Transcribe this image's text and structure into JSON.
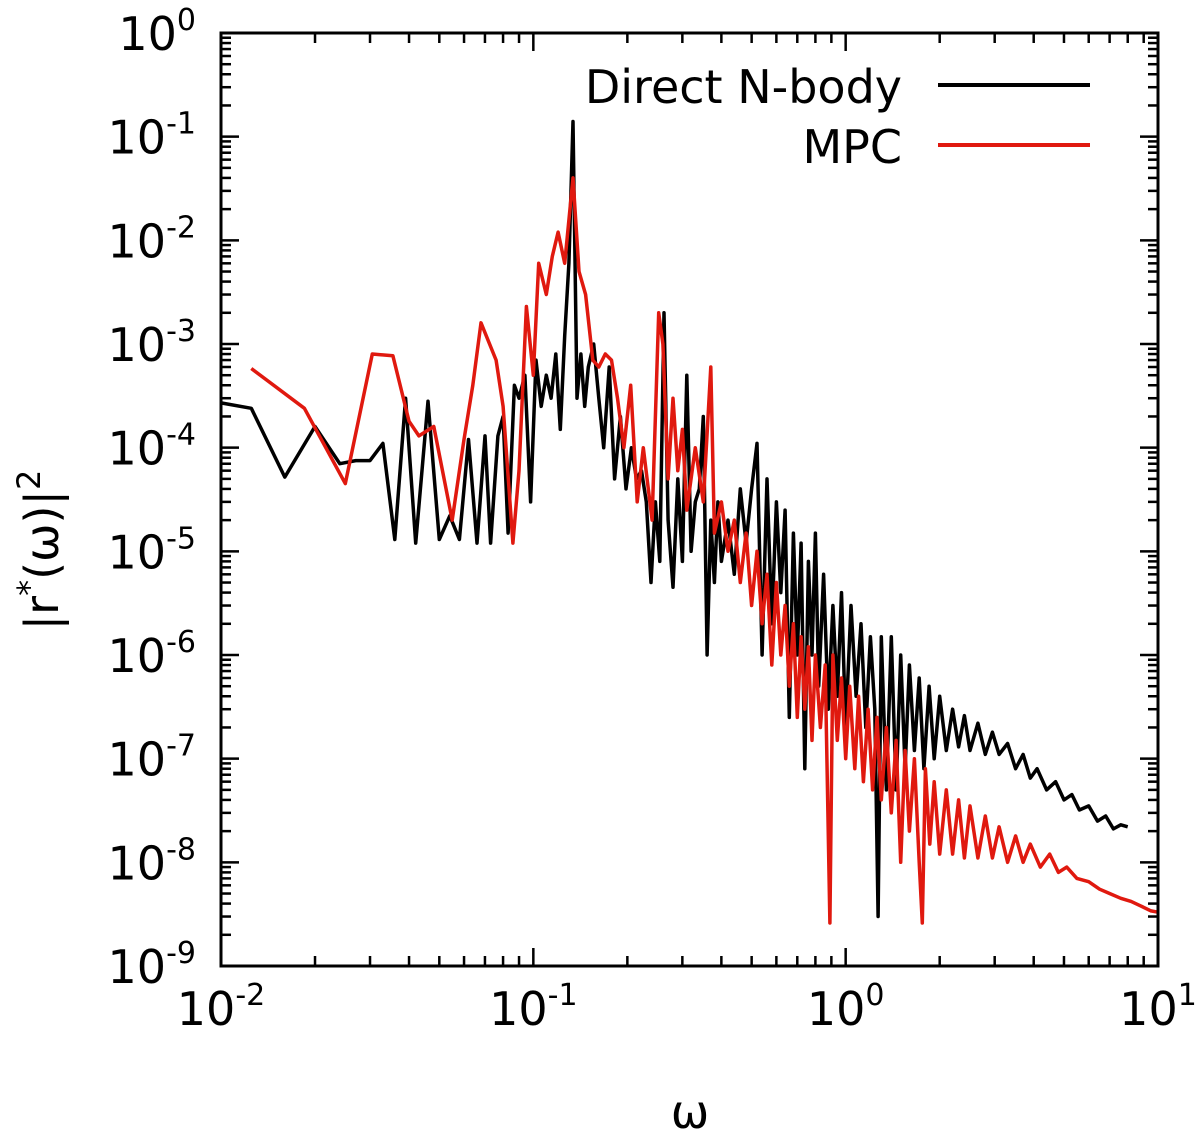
{
  "chart_data": {
    "type": "line",
    "xscale": "log",
    "yscale": "log",
    "xlabel": "ω",
    "ylabel": "|r*(ω)|²",
    "ylabel_parts": {
      "open": "|r",
      "star": "*",
      "mid": "(ω)|",
      "sq": "2"
    },
    "xlim": [
      0.01,
      10
    ],
    "ylim": [
      1e-09,
      1
    ],
    "x_ticks": [
      {
        "value": 0.01,
        "base": "10",
        "exp": "-2"
      },
      {
        "value": 0.1,
        "base": "10",
        "exp": "-1"
      },
      {
        "value": 1,
        "base": "10",
        "exp": "0"
      },
      {
        "value": 10,
        "base": "10",
        "exp": "1"
      }
    ],
    "y_ticks": [
      {
        "value": 1,
        "base": "10",
        "exp": "0"
      },
      {
        "value": 0.1,
        "base": "10",
        "exp": "-1"
      },
      {
        "value": 0.01,
        "base": "10",
        "exp": "-2"
      },
      {
        "value": 0.001,
        "base": "10",
        "exp": "-3"
      },
      {
        "value": 0.0001,
        "base": "10",
        "exp": "-4"
      },
      {
        "value": 1e-05,
        "base": "10",
        "exp": "-5"
      },
      {
        "value": 1e-06,
        "base": "10",
        "exp": "-6"
      },
      {
        "value": 1e-07,
        "base": "10",
        "exp": "-7"
      },
      {
        "value": 1e-08,
        "base": "10",
        "exp": "-8"
      },
      {
        "value": 1e-09,
        "base": "10",
        "exp": "-9"
      }
    ],
    "legend_position": "top-right",
    "series": [
      {
        "name": "Direct N-body",
        "color": "#000000",
        "points": [
          [
            0.01,
            0.00027
          ],
          [
            0.0125,
            0.00024
          ],
          [
            0.016,
            5.2e-05
          ],
          [
            0.02,
            0.00016
          ],
          [
            0.024,
            7e-05
          ],
          [
            0.027,
            7.5e-05
          ],
          [
            0.03,
            7.5e-05
          ],
          [
            0.033,
            0.00011
          ],
          [
            0.036,
            1.3e-05
          ],
          [
            0.039,
            0.0003
          ],
          [
            0.042,
            1.2e-05
          ],
          [
            0.046,
            0.00028
          ],
          [
            0.05,
            1.3e-05
          ],
          [
            0.054,
            2.2e-05
          ],
          [
            0.058,
            1.3e-05
          ],
          [
            0.062,
            0.00012
          ],
          [
            0.066,
            1.2e-05
          ],
          [
            0.07,
            0.00013
          ],
          [
            0.073,
            1.2e-05
          ],
          [
            0.077,
            0.00013
          ],
          [
            0.08,
            0.0002
          ],
          [
            0.083,
            1.5e-05
          ],
          [
            0.087,
            0.0004
          ],
          [
            0.09,
            0.0003
          ],
          [
            0.094,
            0.0005
          ],
          [
            0.098,
            3e-05
          ],
          [
            0.102,
            0.0007
          ],
          [
            0.106,
            0.00025
          ],
          [
            0.11,
            0.0005
          ],
          [
            0.114,
            0.0003
          ],
          [
            0.118,
            0.0008
          ],
          [
            0.122,
            0.00015
          ],
          [
            0.126,
            0.0012
          ],
          [
            0.13,
            0.006
          ],
          [
            0.134,
            0.14
          ],
          [
            0.138,
            0.0003
          ],
          [
            0.142,
            0.0008
          ],
          [
            0.146,
            0.00025
          ],
          [
            0.15,
            0.0006
          ],
          [
            0.156,
            0.001
          ],
          [
            0.162,
            0.0003
          ],
          [
            0.168,
            0.0001
          ],
          [
            0.175,
            0.0006
          ],
          [
            0.182,
            5e-05
          ],
          [
            0.19,
            0.0002
          ],
          [
            0.198,
            4e-05
          ],
          [
            0.206,
            0.0001
          ],
          [
            0.214,
            5e-05
          ],
          [
            0.222,
            6e-05
          ],
          [
            0.23,
            3e-05
          ],
          [
            0.238,
            5e-06
          ],
          [
            0.246,
            3e-05
          ],
          [
            0.254,
            8e-06
          ],
          [
            0.262,
            0.002
          ],
          [
            0.27,
            2e-05
          ],
          [
            0.28,
            4.5e-06
          ],
          [
            0.29,
            5e-05
          ],
          [
            0.3,
            8e-06
          ],
          [
            0.31,
            0.0005
          ],
          [
            0.32,
            1e-05
          ],
          [
            0.33,
            3e-05
          ],
          [
            0.34,
            4e-05
          ],
          [
            0.35,
            0.0002
          ],
          [
            0.36,
            1e-06
          ],
          [
            0.37,
            2e-05
          ],
          [
            0.38,
            5e-06
          ],
          [
            0.39,
            3e-05
          ],
          [
            0.4,
            8e-06
          ],
          [
            0.42,
            2e-05
          ],
          [
            0.44,
            6e-06
          ],
          [
            0.46,
            4e-05
          ],
          [
            0.48,
            1.2e-05
          ],
          [
            0.5,
            4e-05
          ],
          [
            0.52,
            0.00011
          ],
          [
            0.54,
            1e-06
          ],
          [
            0.56,
            5e-05
          ],
          [
            0.58,
            2e-06
          ],
          [
            0.6,
            3e-05
          ],
          [
            0.62,
            4e-06
          ],
          [
            0.64,
            2.5e-05
          ],
          [
            0.66,
            2.5e-07
          ],
          [
            0.68,
            1.5e-05
          ],
          [
            0.7,
            1e-06
          ],
          [
            0.72,
            1.2e-05
          ],
          [
            0.74,
            8e-08
          ],
          [
            0.76,
            8e-06
          ],
          [
            0.78,
            1e-06
          ],
          [
            0.8,
            1.5e-05
          ],
          [
            0.82,
            5e-07
          ],
          [
            0.85,
            6e-06
          ],
          [
            0.88,
            3e-07
          ],
          [
            0.91,
            3e-06
          ],
          [
            0.94,
            4e-07
          ],
          [
            0.97,
            4e-06
          ],
          [
            1.0,
            2e-07
          ],
          [
            1.04,
            3e-06
          ],
          [
            1.08,
            4e-07
          ],
          [
            1.12,
            2e-06
          ],
          [
            1.16,
            2e-07
          ],
          [
            1.2,
            1.5e-06
          ],
          [
            1.24,
            3e-07
          ],
          [
            1.27,
            3e-09
          ],
          [
            1.3,
            1.5e-06
          ],
          [
            1.35,
            5e-08
          ],
          [
            1.4,
            1.5e-06
          ],
          [
            1.45,
            5e-08
          ],
          [
            1.5,
            1e-06
          ],
          [
            1.55,
            8e-08
          ],
          [
            1.6,
            8e-07
          ],
          [
            1.66,
            1.2e-07
          ],
          [
            1.72,
            6e-07
          ],
          [
            1.78,
            8e-08
          ],
          [
            1.85,
            5e-07
          ],
          [
            1.92,
            1e-07
          ],
          [
            2.0,
            4e-07
          ],
          [
            2.1,
            1.2e-07
          ],
          [
            2.2,
            3e-07
          ],
          [
            2.3,
            1.3e-07
          ],
          [
            2.4,
            2.6e-07
          ],
          [
            2.5,
            1.2e-07
          ],
          [
            2.65,
            2.2e-07
          ],
          [
            2.8,
            1.1e-07
          ],
          [
            2.95,
            1.8e-07
          ],
          [
            3.1,
            1.1e-07
          ],
          [
            3.3,
            1.4e-07
          ],
          [
            3.5,
            8e-08
          ],
          [
            3.7,
            1.1e-07
          ],
          [
            3.9,
            6.5e-08
          ],
          [
            4.1,
            8e-08
          ],
          [
            4.4,
            5e-08
          ],
          [
            4.7,
            6e-08
          ],
          [
            5.0,
            4e-08
          ],
          [
            5.3,
            4.5e-08
          ],
          [
            5.6,
            3.2e-08
          ],
          [
            6.0,
            3.5e-08
          ],
          [
            6.4,
            2.5e-08
          ],
          [
            6.8,
            2.8e-08
          ],
          [
            7.2,
            2.1e-08
          ],
          [
            7.6,
            2.3e-08
          ],
          [
            8.0,
            2.2e-08
          ]
        ]
      },
      {
        "name": "MPC",
        "color": "#e0190f",
        "points": [
          [
            0.0125,
            0.00058
          ],
          [
            0.0185,
            0.00024
          ],
          [
            0.025,
            4.5e-05
          ],
          [
            0.0305,
            0.0008
          ],
          [
            0.0355,
            0.00077
          ],
          [
            0.04,
            0.00018
          ],
          [
            0.043,
            0.00013
          ],
          [
            0.048,
            0.00016
          ],
          [
            0.055,
            2e-05
          ],
          [
            0.06,
            0.00012
          ],
          [
            0.064,
            0.0004
          ],
          [
            0.068,
            0.0016
          ],
          [
            0.076,
            0.0007
          ],
          [
            0.08,
            0.00025
          ],
          [
            0.086,
            1.2e-05
          ],
          [
            0.09,
            6e-05
          ],
          [
            0.095,
            0.0023
          ],
          [
            0.1,
            0.0005
          ],
          [
            0.104,
            0.006
          ],
          [
            0.11,
            0.003
          ],
          [
            0.115,
            0.007
          ],
          [
            0.12,
            0.012
          ],
          [
            0.126,
            0.006
          ],
          [
            0.134,
            0.04
          ],
          [
            0.14,
            0.005
          ],
          [
            0.147,
            0.003
          ],
          [
            0.155,
            0.0007
          ],
          [
            0.162,
            0.0006
          ],
          [
            0.17,
            0.0008
          ],
          [
            0.178,
            0.0007
          ],
          [
            0.186,
            0.0003
          ],
          [
            0.195,
            0.0001
          ],
          [
            0.205,
            0.0004
          ],
          [
            0.215,
            3e-05
          ],
          [
            0.225,
            0.0001
          ],
          [
            0.24,
            2e-05
          ],
          [
            0.252,
            0.002
          ],
          [
            0.26,
            0.001
          ],
          [
            0.27,
            5e-05
          ],
          [
            0.28,
            0.0003
          ],
          [
            0.29,
            6e-05
          ],
          [
            0.3,
            0.00015
          ],
          [
            0.31,
            2.5e-05
          ],
          [
            0.33,
            0.0001
          ],
          [
            0.35,
            3e-05
          ],
          [
            0.37,
            0.0006
          ],
          [
            0.38,
            1.5e-05
          ],
          [
            0.4,
            3e-05
          ],
          [
            0.42,
            1e-05
          ],
          [
            0.44,
            2e-05
          ],
          [
            0.46,
            5e-06
          ],
          [
            0.48,
            1.5e-05
          ],
          [
            0.5,
            3e-06
          ],
          [
            0.52,
            1e-05
          ],
          [
            0.54,
            2e-06
          ],
          [
            0.56,
            6e-06
          ],
          [
            0.58,
            8e-07
          ],
          [
            0.6,
            5e-06
          ],
          [
            0.62,
            1e-06
          ],
          [
            0.64,
            3e-06
          ],
          [
            0.66,
            5e-07
          ],
          [
            0.68,
            2e-06
          ],
          [
            0.7,
            2.5e-07
          ],
          [
            0.72,
            1.5e-06
          ],
          [
            0.74,
            3e-07
          ],
          [
            0.76,
            1.2e-06
          ],
          [
            0.78,
            1.5e-07
          ],
          [
            0.8,
            1e-06
          ],
          [
            0.83,
            2e-07
          ],
          [
            0.86,
            8e-07
          ],
          [
            0.89,
            2.6e-09
          ],
          [
            0.91,
            1e-06
          ],
          [
            0.94,
            1.5e-07
          ],
          [
            0.97,
            6e-07
          ],
          [
            1.0,
            1e-07
          ],
          [
            1.03,
            5e-07
          ],
          [
            1.07,
            8e-08
          ],
          [
            1.1,
            4e-07
          ],
          [
            1.14,
            6e-08
          ],
          [
            1.18,
            3e-07
          ],
          [
            1.22,
            5e-08
          ],
          [
            1.26,
            2.5e-07
          ],
          [
            1.3,
            4e-08
          ],
          [
            1.35,
            2e-07
          ],
          [
            1.4,
            3e-08
          ],
          [
            1.45,
            1.5e-07
          ],
          [
            1.5,
            1e-08
          ],
          [
            1.55,
            1.2e-07
          ],
          [
            1.6,
            2e-08
          ],
          [
            1.66,
            1e-07
          ],
          [
            1.72,
            1e-08
          ],
          [
            1.76,
            2.6e-09
          ],
          [
            1.8,
            8e-08
          ],
          [
            1.86,
            1.5e-08
          ],
          [
            1.92,
            6e-08
          ],
          [
            2.0,
            1.2e-08
          ],
          [
            2.1,
            5e-08
          ],
          [
            2.2,
            1.2e-08
          ],
          [
            2.3,
            4e-08
          ],
          [
            2.4,
            1.1e-08
          ],
          [
            2.5,
            3.5e-08
          ],
          [
            2.65,
            1.1e-08
          ],
          [
            2.8,
            2.8e-08
          ],
          [
            2.95,
            1.1e-08
          ],
          [
            3.1,
            2.2e-08
          ],
          [
            3.3,
            1e-08
          ],
          [
            3.5,
            1.8e-08
          ],
          [
            3.7,
            1e-08
          ],
          [
            3.9,
            1.5e-08
          ],
          [
            4.2,
            9e-09
          ],
          [
            4.5,
            1.2e-08
          ],
          [
            4.8,
            8e-09
          ],
          [
            5.1,
            9e-09
          ],
          [
            5.5,
            7e-09
          ],
          [
            6.0,
            6.5e-09
          ],
          [
            6.5,
            5.5e-09
          ],
          [
            7.0,
            5e-09
          ],
          [
            7.6,
            4.5e-09
          ],
          [
            8.2,
            4.2e-09
          ],
          [
            8.8,
            3.8e-09
          ],
          [
            9.5,
            3.4e-09
          ],
          [
            10.0,
            3.3e-09
          ]
        ]
      }
    ]
  }
}
